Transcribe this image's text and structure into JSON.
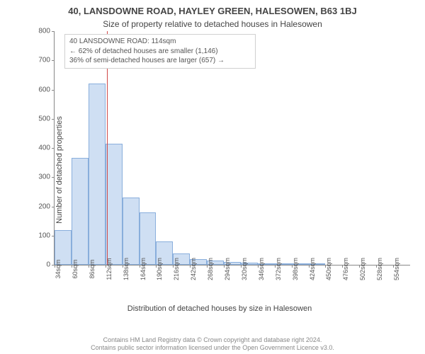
{
  "title": "40, LANSDOWNE ROAD, HAYLEY GREEN, HALESOWEN, B63 1BJ",
  "subtitle": "Size of property relative to detached houses in Halesowen",
  "ylabel": "Number of detached properties",
  "xlabel": "Distribution of detached houses by size in Halesowen",
  "footer_line1": "Contains HM Land Registry data © Crown copyright and database right 2024.",
  "footer_line2": "Contains public sector information licensed under the Open Government Licence v3.0.",
  "annotation": {
    "line1": "40 LANSDOWNE ROAD: 114sqm",
    "line2": "← 62% of detached houses are smaller (1,146)",
    "line3": "36% of semi-detached houses are larger (657) →"
  },
  "chart": {
    "type": "histogram",
    "ylim": [
      0,
      800
    ],
    "ytick_step": 100,
    "x_start": 34,
    "x_step": 26,
    "bar_count": 21,
    "values": [
      120,
      365,
      620,
      415,
      230,
      180,
      80,
      40,
      20,
      15,
      10,
      8,
      5,
      3,
      2,
      2,
      0,
      0,
      0,
      0,
      0
    ],
    "bar_fill": "#cfdff3",
    "bar_border": "#89aedc",
    "marker_value": 114,
    "marker_color": "#d04848",
    "axis_color": "#888888",
    "tick_font_size": 10,
    "title_fontsize": 13,
    "subtitle_fontsize": 12,
    "background_color": "#ffffff"
  }
}
